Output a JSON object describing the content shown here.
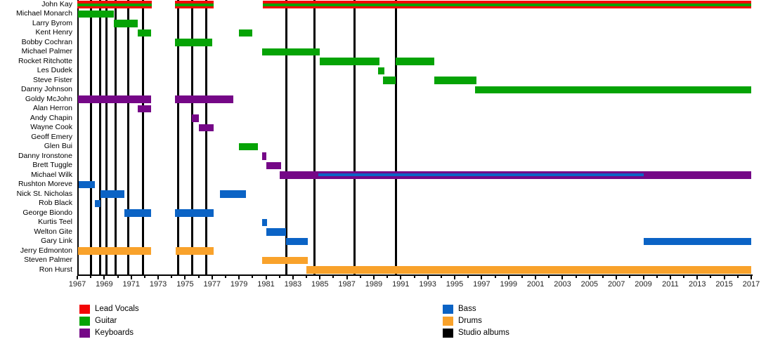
{
  "colors": {
    "vocals": "#f20505",
    "guitar": "#05a305",
    "keyboards": "#750787",
    "bass": "#0b63c5",
    "drums": "#f9a22b",
    "albums": "#000000"
  },
  "legend": {
    "columns": [
      {
        "items": [
          {
            "label": "Lead Vocals",
            "role": "vocals"
          },
          {
            "label": "Guitar",
            "role": "guitar"
          },
          {
            "label": "Keyboards",
            "role": "keyboards"
          }
        ]
      },
      {
        "items": [
          {
            "label": "Bass",
            "role": "bass"
          },
          {
            "label": "Drums",
            "role": "drums"
          },
          {
            "label": "Studio albums",
            "role": "albums"
          }
        ]
      }
    ]
  },
  "chart_data": {
    "type": "timeline-gantt",
    "title": "",
    "x_axis": {
      "min": 1967,
      "max": 2017,
      "tick_years": [
        1967,
        1969,
        1971,
        1973,
        1975,
        1977,
        1979,
        1981,
        1983,
        1985,
        1987,
        1989,
        1991,
        1993,
        1995,
        1997,
        1999,
        2001,
        2003,
        2005,
        2007,
        2009,
        2011,
        2013,
        2015,
        2017
      ],
      "minor_tick_interval": 1
    },
    "album_lines": [
      1968.0,
      1968.7,
      1969.15,
      1969.85,
      1970.8,
      1971.9,
      1974.5,
      1975.55,
      1976.55,
      1982.5,
      1984.6,
      1987.55,
      1990.65
    ],
    "members": [
      {
        "name": "John Kay",
        "segments": [
          {
            "from": 1967.0,
            "to": 1972.55,
            "role": "vocals",
            "stripe": "guitar"
          },
          {
            "from": 1974.25,
            "to": 1977.1,
            "role": "vocals",
            "stripe": "guitar"
          },
          {
            "from": 1980.75,
            "to": 2017,
            "role": "vocals",
            "stripe": "guitar"
          }
        ]
      },
      {
        "name": "Michael Monarch",
        "segments": [
          {
            "from": 1967.05,
            "to": 1969.7,
            "role": "guitar"
          }
        ]
      },
      {
        "name": "Larry Byrom",
        "segments": [
          {
            "from": 1969.7,
            "to": 1971.5,
            "role": "guitar"
          }
        ]
      },
      {
        "name": "Kent Henry",
        "segments": [
          {
            "from": 1971.5,
            "to": 1972.5,
            "role": "guitar"
          },
          {
            "from": 1979.0,
            "to": 1980.0,
            "role": "guitar"
          }
        ]
      },
      {
        "name": "Bobby Cochran",
        "segments": [
          {
            "from": 1974.25,
            "to": 1977.0,
            "role": "guitar"
          }
        ]
      },
      {
        "name": "Michael Palmer",
        "segments": [
          {
            "from": 1980.7,
            "to": 1985.0,
            "role": "guitar"
          }
        ]
      },
      {
        "name": "Rocket Ritchotte",
        "segments": [
          {
            "from": 1985.0,
            "to": 1989.4,
            "role": "guitar"
          },
          {
            "from": 1990.6,
            "to": 1993.5,
            "role": "guitar"
          }
        ]
      },
      {
        "name": "Les Dudek",
        "segments": [
          {
            "from": 1989.3,
            "to": 1989.8,
            "role": "guitar"
          }
        ]
      },
      {
        "name": "Steve Fister",
        "segments": [
          {
            "from": 1989.7,
            "to": 1990.6,
            "role": "guitar"
          },
          {
            "from": 1993.5,
            "to": 1996.6,
            "role": "guitar"
          }
        ]
      },
      {
        "name": "Danny Johnson",
        "segments": [
          {
            "from": 1996.5,
            "to": 2017,
            "role": "guitar"
          }
        ]
      },
      {
        "name": "Goldy McJohn",
        "segments": [
          {
            "from": 1967.05,
            "to": 1972.5,
            "role": "keyboards"
          },
          {
            "from": 1974.25,
            "to": 1978.6,
            "role": "keyboards"
          }
        ]
      },
      {
        "name": "Alan Herron",
        "segments": [
          {
            "from": 1971.5,
            "to": 1972.5,
            "role": "keyboards"
          }
        ]
      },
      {
        "name": "Andy Chapin",
        "segments": [
          {
            "from": 1975.5,
            "to": 1976.0,
            "role": "keyboards"
          }
        ]
      },
      {
        "name": "Wayne Cook",
        "segments": [
          {
            "from": 1976.0,
            "to": 1977.1,
            "role": "keyboards"
          }
        ]
      },
      {
        "name": "Geoff Emery",
        "segments": []
      },
      {
        "name": "Glen Bui",
        "segments": [
          {
            "from": 1979.0,
            "to": 1980.4,
            "role": "guitar"
          }
        ]
      },
      {
        "name": "Danny Ironstone",
        "segments": [
          {
            "from": 1980.7,
            "to": 1981.05,
            "role": "keyboards"
          }
        ]
      },
      {
        "name": "Brett Tuggle",
        "segments": [
          {
            "from": 1981.0,
            "to": 1982.1,
            "role": "keyboards"
          }
        ]
      },
      {
        "name": "Michael Wilk",
        "segments": [
          {
            "from": 1982.0,
            "to": 1984.9,
            "role": "keyboards"
          },
          {
            "from": 1984.9,
            "to": 2009.0,
            "role": "keyboards",
            "stripe": "bass"
          },
          {
            "from": 2009.0,
            "to": 2017,
            "role": "keyboards"
          }
        ]
      },
      {
        "name": "Rushton Moreve",
        "segments": [
          {
            "from": 1967.1,
            "to": 1968.3,
            "role": "bass"
          }
        ]
      },
      {
        "name": "Nick St. Nicholas",
        "segments": [
          {
            "from": 1968.7,
            "to": 1970.5,
            "role": "bass"
          },
          {
            "from": 1977.6,
            "to": 1979.5,
            "role": "bass"
          }
        ]
      },
      {
        "name": "Rob Black",
        "segments": [
          {
            "from": 1968.3,
            "to": 1968.7,
            "role": "bass"
          }
        ]
      },
      {
        "name": "George Biondo",
        "segments": [
          {
            "from": 1970.5,
            "to": 1972.5,
            "role": "bass"
          },
          {
            "from": 1974.25,
            "to": 1977.1,
            "role": "bass"
          }
        ]
      },
      {
        "name": "Kurtis Teel",
        "segments": [
          {
            "from": 1980.7,
            "to": 1981.1,
            "role": "bass"
          }
        ]
      },
      {
        "name": "Welton Gite",
        "segments": [
          {
            "from": 1981.0,
            "to": 1982.5,
            "role": "bass"
          }
        ]
      },
      {
        "name": "Gary Link",
        "segments": [
          {
            "from": 1982.5,
            "to": 1984.1,
            "role": "bass"
          },
          {
            "from": 2009.0,
            "to": 2017,
            "role": "bass"
          }
        ]
      },
      {
        "name": "Jerry Edmonton",
        "segments": [
          {
            "from": 1967.05,
            "to": 1972.5,
            "role": "drums"
          },
          {
            "from": 1974.3,
            "to": 1977.1,
            "role": "drums"
          }
        ]
      },
      {
        "name": "Steven Palmer",
        "segments": [
          {
            "from": 1980.7,
            "to": 1984.1,
            "role": "drums"
          }
        ]
      },
      {
        "name": "Ron Hurst",
        "segments": [
          {
            "from": 1984.0,
            "to": 2017,
            "role": "drums"
          }
        ]
      }
    ]
  }
}
